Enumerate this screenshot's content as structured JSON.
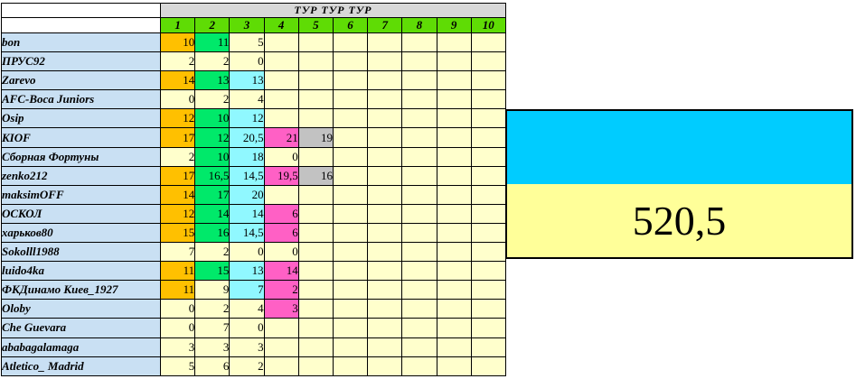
{
  "table": {
    "title": "ТУР ТУР ТУР",
    "columns": [
      "1",
      "2",
      "3",
      "4",
      "5",
      "6",
      "7",
      "8",
      "9",
      "10"
    ],
    "rows": [
      {
        "label": "bon",
        "cells": [
          [
            "10",
            "orange"
          ],
          [
            "11",
            "green"
          ],
          [
            "5",
            "plain"
          ]
        ]
      },
      {
        "label": "ПРУС92",
        "cells": [
          [
            "2",
            "plain"
          ],
          [
            "2",
            "plain"
          ],
          [
            "0",
            "plain"
          ]
        ]
      },
      {
        "label": "Zarevo",
        "cells": [
          [
            "14",
            "orange"
          ],
          [
            "13",
            "green"
          ],
          [
            "13",
            "cyan"
          ]
        ]
      },
      {
        "label": "AFC-Boca Juniors",
        "cells": [
          [
            "0",
            "plain"
          ],
          [
            "2",
            "plain"
          ],
          [
            "4",
            "plain"
          ]
        ]
      },
      {
        "label": "Osip",
        "cells": [
          [
            "12",
            "orange"
          ],
          [
            "10",
            "green"
          ],
          [
            "12",
            "cyan"
          ]
        ]
      },
      {
        "label": "KIOF",
        "cells": [
          [
            "17",
            "orange"
          ],
          [
            "12",
            "green"
          ],
          [
            "20,5",
            "cyan"
          ],
          [
            "21",
            "magenta"
          ],
          [
            "19",
            "gray"
          ]
        ]
      },
      {
        "label": "Сборная Фортуны",
        "cells": [
          [
            "2",
            "plain"
          ],
          [
            "10",
            "green"
          ],
          [
            "18",
            "cyan"
          ],
          [
            "0",
            "plain"
          ]
        ]
      },
      {
        "label": "zenko212",
        "cells": [
          [
            "17",
            "orange"
          ],
          [
            "16,5",
            "green"
          ],
          [
            "14,5",
            "cyan"
          ],
          [
            "19,5",
            "magenta"
          ],
          [
            "16",
            "gray"
          ]
        ]
      },
      {
        "label": "maksimOFF",
        "cells": [
          [
            "14",
            "orange"
          ],
          [
            "17",
            "green"
          ],
          [
            "20",
            "cyan"
          ]
        ]
      },
      {
        "label": "ОСКОЛ",
        "cells": [
          [
            "12",
            "orange"
          ],
          [
            "14",
            "green"
          ],
          [
            "14",
            "cyan"
          ],
          [
            "6",
            "magenta"
          ]
        ]
      },
      {
        "label": "харьков80",
        "cells": [
          [
            "15",
            "orange"
          ],
          [
            "16",
            "green"
          ],
          [
            "14,5",
            "cyan"
          ],
          [
            "6",
            "magenta"
          ]
        ]
      },
      {
        "label": "Sokolll1988",
        "cells": [
          [
            "7",
            "plain"
          ],
          [
            "2",
            "plain"
          ],
          [
            "0",
            "plain"
          ],
          [
            "0",
            "plain"
          ]
        ]
      },
      {
        "label": "luido4ka",
        "cells": [
          [
            "11",
            "orange"
          ],
          [
            "15",
            "green"
          ],
          [
            "13",
            "cyan"
          ],
          [
            "14",
            "magenta"
          ]
        ]
      },
      {
        "label": "ФКДинамо Киев_1927",
        "cells": [
          [
            "11",
            "orange"
          ],
          [
            "9",
            "plain"
          ],
          [
            "7",
            "cyan"
          ],
          [
            "2",
            "magenta"
          ]
        ]
      },
      {
        "label": "Oloby",
        "cells": [
          [
            "0",
            "plain"
          ],
          [
            "2",
            "plain"
          ],
          [
            "4",
            "plain"
          ],
          [
            "3",
            "magenta"
          ]
        ]
      },
      {
        "label": "Che Guevara",
        "cells": [
          [
            "0",
            "plain"
          ],
          [
            "7",
            "plain"
          ],
          [
            "0",
            "plain"
          ]
        ]
      },
      {
        "label": "ababagalamaga",
        "cells": [
          [
            "3",
            "plain"
          ],
          [
            "3",
            "plain"
          ],
          [
            "3",
            "plain"
          ]
        ]
      },
      {
        "label": "Atletico_ Madrid",
        "cells": [
          [
            "5",
            "plain"
          ],
          [
            "6",
            "plain"
          ],
          [
            "2",
            "plain"
          ]
        ]
      }
    ]
  },
  "summary": {
    "value": "520,5",
    "top_color": "#00CCFF",
    "bottom_color": "#FFFF99"
  },
  "colors": {
    "plain": "#FFFFCC",
    "orange": "#FFC000",
    "green": "#00E96A",
    "cyan": "#90F8FF",
    "magenta": "#FF60C5",
    "gray": "#C2C2C2",
    "label_bg": "#C9E0F3",
    "header_bg": "#D8D8D8",
    "header_green": "#5FDC05",
    "text": "#000000"
  }
}
